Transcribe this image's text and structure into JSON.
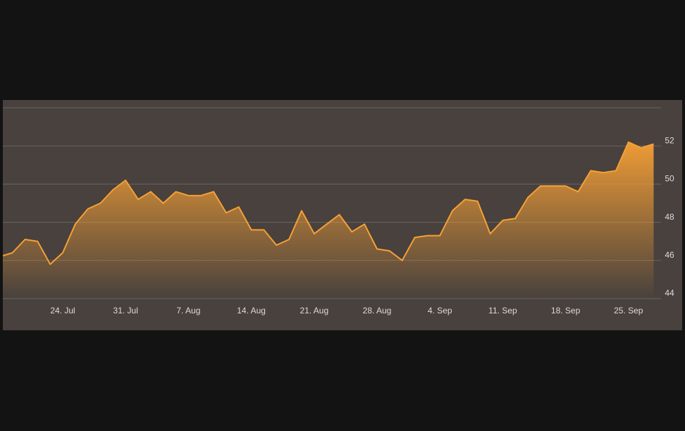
{
  "chart_data": {
    "type": "area",
    "categories": [
      null,
      null,
      null,
      null,
      null,
      "24. Jul",
      null,
      null,
      null,
      null,
      "31. Jul",
      null,
      null,
      null,
      null,
      "7. Aug",
      null,
      null,
      null,
      null,
      "14. Aug",
      null,
      null,
      null,
      null,
      "21. Aug",
      null,
      null,
      null,
      null,
      "28. Aug",
      null,
      null,
      null,
      null,
      "4. Sep",
      null,
      null,
      null,
      null,
      "11. Sep",
      null,
      null,
      null,
      null,
      "18. Sep",
      null,
      null,
      null,
      null,
      "25. Sep",
      null,
      null
    ],
    "values": [
      46.2,
      46.4,
      47.1,
      47.0,
      45.8,
      46.4,
      47.9,
      48.7,
      49.0,
      49.7,
      50.2,
      49.2,
      49.6,
      49.0,
      49.6,
      49.4,
      49.4,
      49.6,
      48.5,
      48.8,
      47.6,
      47.6,
      46.8,
      47.1,
      48.6,
      47.4,
      47.9,
      48.4,
      47.5,
      47.9,
      46.6,
      46.5,
      46.0,
      47.2,
      47.3,
      47.3,
      48.6,
      49.2,
      49.1,
      47.4,
      48.1,
      48.2,
      49.3,
      49.9,
      49.9,
      49.9,
      49.6,
      50.7,
      50.6,
      50.7,
      52.2,
      51.9,
      52.1
    ],
    "color": "#f7a035",
    "ylim": [
      44,
      54
    ],
    "yticks": [
      44,
      46,
      48,
      50,
      52
    ],
    "grid": true
  }
}
